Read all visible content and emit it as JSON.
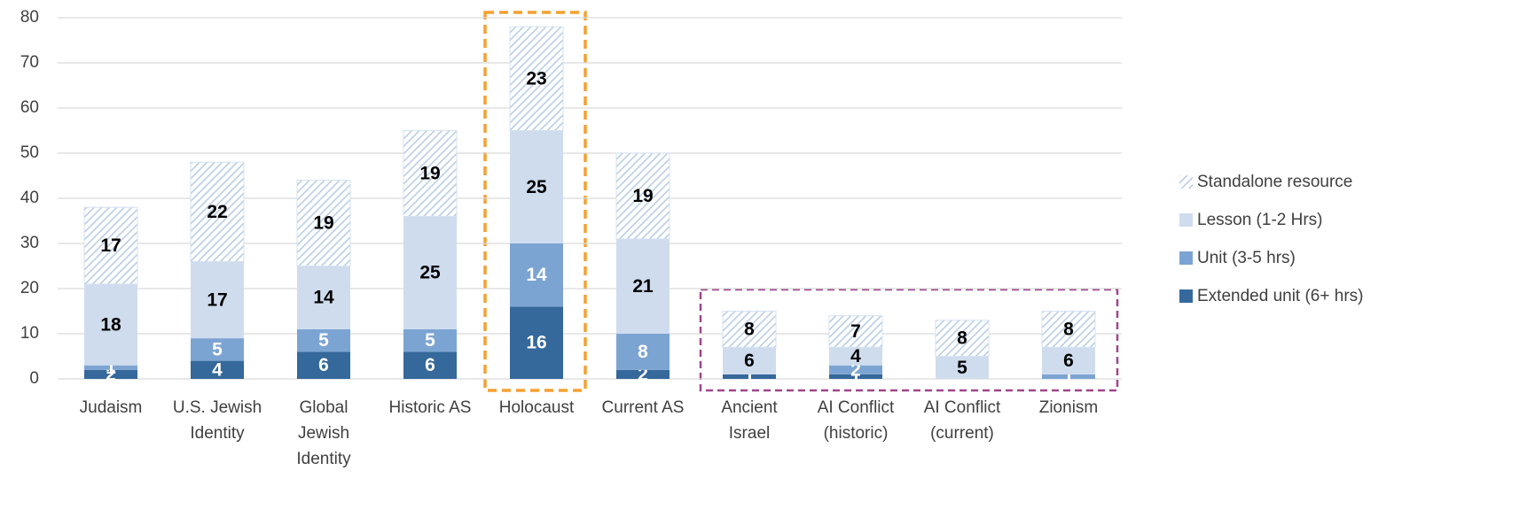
{
  "chart_data": {
    "type": "stacked_bar",
    "categories": [
      "Judaism",
      "U.S. Jewish Identity",
      "Global Jewish Identity",
      "Historic AS",
      "Holocaust",
      "Current AS",
      "Ancient Israel",
      "AI Conflict (historic)",
      "AI Conflict (current)",
      "Zionism"
    ],
    "series": [
      {
        "name": "Extended unit (6+ hrs)",
        "color": "#35689b",
        "label_color": "#ffffff",
        "values": [
          2,
          4,
          6,
          6,
          16,
          2,
          1,
          1,
          0,
          0
        ]
      },
      {
        "name": "Unit (3-5 hrs)",
        "color": "#7ca4d2",
        "label_color": "#ffffff",
        "values": [
          1,
          5,
          5,
          5,
          14,
          8,
          0,
          2,
          0,
          1
        ]
      },
      {
        "name": "Lesson (1-2 Hrs)",
        "color": "#cfdcee",
        "label_color": "#000000",
        "values": [
          18,
          17,
          14,
          25,
          25,
          21,
          6,
          4,
          5,
          6
        ]
      },
      {
        "name": "Standalone resource",
        "color": "#b5cce4",
        "label_color": "#000000",
        "hatch": true,
        "values": [
          17,
          22,
          19,
          19,
          23,
          19,
          8,
          7,
          8,
          8
        ]
      }
    ],
    "ylim": [
      0,
      80
    ],
    "yticks": [
      0,
      10,
      20,
      30,
      40,
      50,
      60,
      70,
      80
    ],
    "grid": true,
    "legend": "right"
  }
}
